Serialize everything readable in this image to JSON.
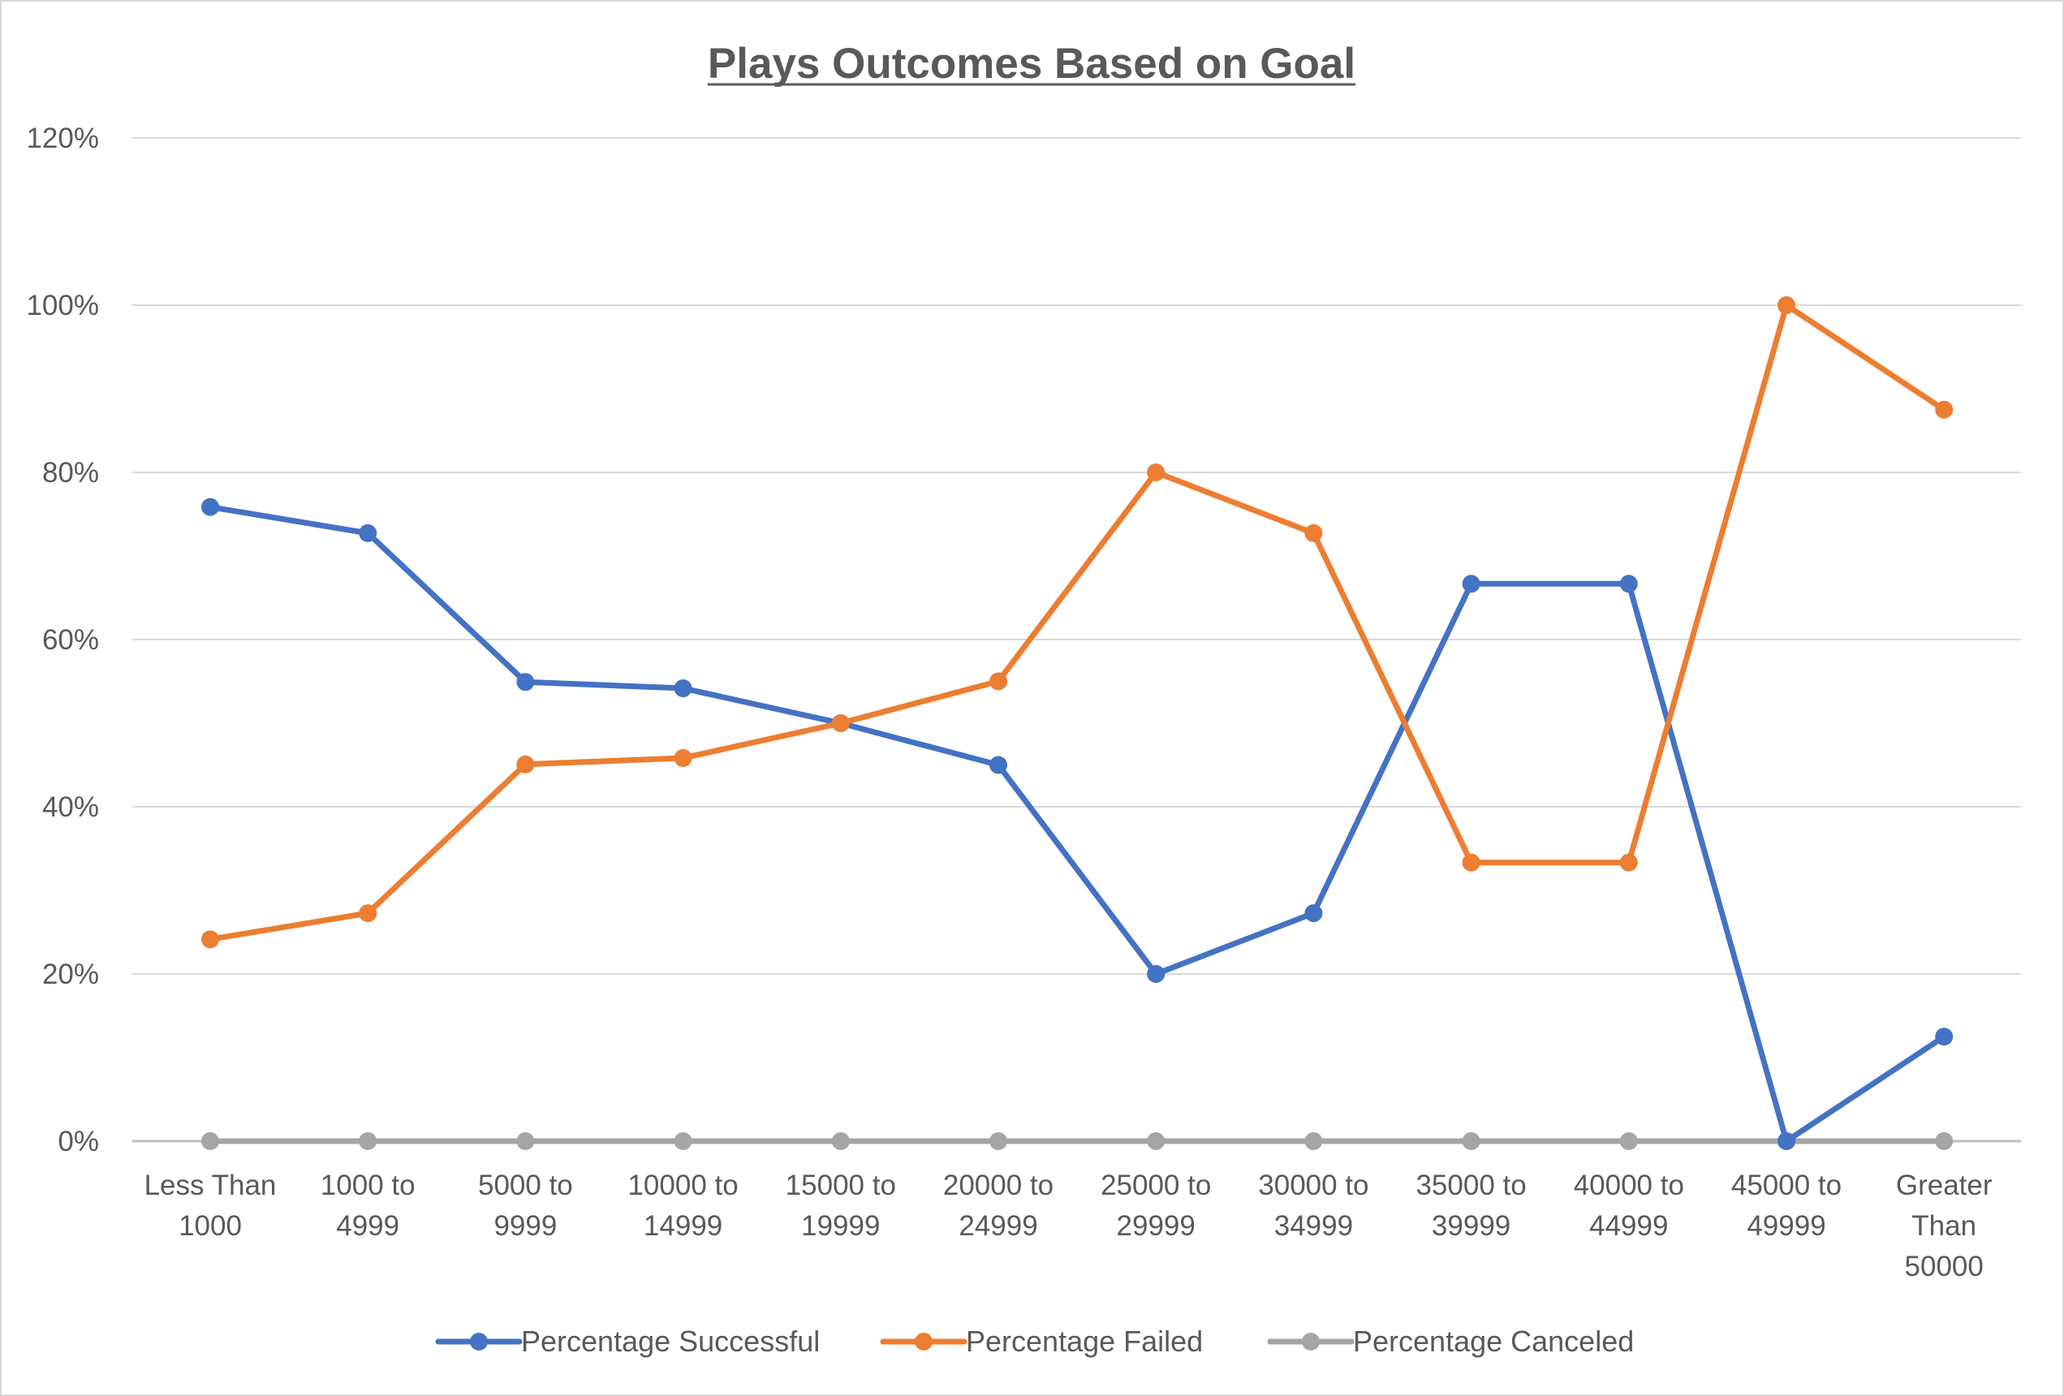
{
  "chart_data": {
    "type": "line",
    "title": "Plays Outcomes Based on Goal",
    "xlabel": "",
    "ylabel": "",
    "categories": [
      [
        "Less Than",
        "1000"
      ],
      [
        "1000 to",
        "4999"
      ],
      [
        "5000 to",
        "9999"
      ],
      [
        "10000 to",
        "14999"
      ],
      [
        "15000 to",
        "19999"
      ],
      [
        "20000 to",
        "24999"
      ],
      [
        "25000 to",
        "29999"
      ],
      [
        "30000 to",
        "34999"
      ],
      [
        "35000 to",
        "39999"
      ],
      [
        "40000 to",
        "44999"
      ],
      [
        "45000 to",
        "49999"
      ],
      [
        "Greater",
        "Than",
        "50000"
      ]
    ],
    "yticks": [
      "0%",
      "20%",
      "40%",
      "60%",
      "80%",
      "100%",
      "120%"
    ],
    "ylim": [
      0,
      120
    ],
    "grid": true,
    "legend": "bottom",
    "series": [
      {
        "name": "Percentage Successful",
        "color": "#4472C4",
        "values": [
          75.86,
          72.73,
          54.93,
          54.17,
          50.0,
          45.0,
          20.0,
          27.27,
          66.67,
          66.67,
          0.0,
          12.5
        ]
      },
      {
        "name": "Percentage Failed",
        "color": "#ED7D31",
        "values": [
          24.14,
          27.27,
          45.07,
          45.83,
          50.0,
          55.0,
          80.0,
          72.73,
          33.33,
          33.33,
          100.0,
          87.5
        ]
      },
      {
        "name": "Percentage Canceled",
        "color": "#A5A5A5",
        "values": [
          0,
          0,
          0,
          0,
          0,
          0,
          0,
          0,
          0,
          0,
          0,
          0
        ]
      }
    ]
  }
}
